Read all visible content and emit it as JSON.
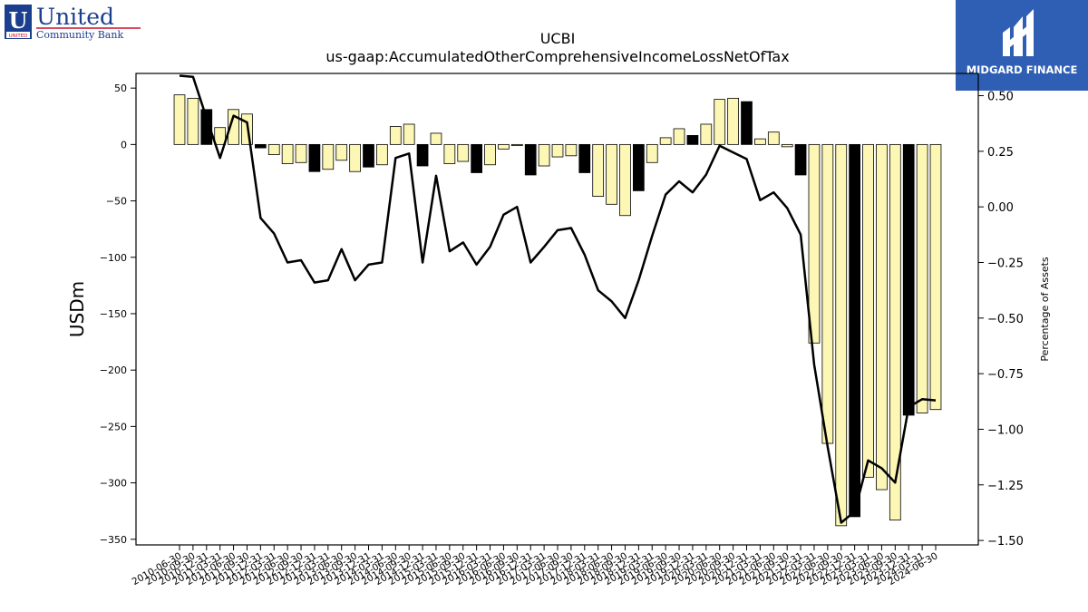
{
  "branding": {
    "left_logo_main": "United",
    "left_logo_sub": "Community Bank",
    "left_logo_badge": "UNITED",
    "right_logo_text": "MIDGARD FINANCE",
    "right_logo_color": "#2f5fb4"
  },
  "chart_data": {
    "type": "bar",
    "title": "UCBI",
    "subtitle": "us-gaap:AccumulatedOtherComprehensiveIncomeLossNetOfTax",
    "ylabel": "USDm",
    "y2label": "Percentage of Assets",
    "ylim": [
      -355,
      63
    ],
    "y2lim": [
      -1.52,
      0.6
    ],
    "yticks": [
      50,
      0,
      -50,
      -100,
      -150,
      -200,
      -250,
      -300,
      -350
    ],
    "y2ticks": [
      0.5,
      0.25,
      0.0,
      -0.25,
      -0.5,
      -0.75,
      -1.0,
      -1.25,
      -1.5
    ],
    "x_tick_labels": [
      "2010-06-30",
      "2010-09-30",
      "2010-12-31",
      "2011-03-31",
      "2011-06-30",
      "2011-09-30",
      "2011-12-31",
      "2012-03-31",
      "2012-06-30",
      "2012-09-30",
      "2012-12-31",
      "2013-03-31",
      "2013-06-30",
      "2013-09-30",
      "2013-12-31",
      "2014-03-31",
      "2014-06-30",
      "2014-09-30",
      "2014-12-31",
      "2015-03-31",
      "2015-06-30",
      "2015-09-30",
      "2015-12-31",
      "2016-03-31",
      "2016-06-30",
      "2016-09-30",
      "2016-12-31",
      "2017-03-31",
      "2017-06-30",
      "2017-09-30",
      "2017-12-31",
      "2018-03-31",
      "2018-06-30",
      "2018-09-30",
      "2018-12-31",
      "2019-03-31",
      "2019-06-30",
      "2019-09-30",
      "2019-12-31",
      "2020-03-31",
      "2020-06-30",
      "2020-09-30",
      "2020-12-31",
      "2021-03-31",
      "2021-06-30",
      "2021-09-30",
      "2021-12-31",
      "2022-03-31",
      "2022-06-30",
      "2022-09-30",
      "2022-12-31",
      "2023-03-31",
      "2023-06-30",
      "2023-09-30",
      "2023-12-31",
      "2024-03-31",
      "2024-06-30"
    ],
    "series": [
      {
        "name": "",
        "kind": "bar",
        "values": [
          44,
          41,
          31,
          15,
          31,
          27,
          -3,
          -9,
          -17,
          -16,
          -24,
          -22,
          -14,
          -24,
          -20,
          -18,
          16,
          18,
          -19,
          10,
          -17,
          -15,
          -25,
          -18,
          -4,
          -1,
          -27,
          -19,
          -11,
          -10,
          -25,
          -46,
          -53,
          -63,
          -41,
          -16,
          6,
          14,
          8,
          18,
          40,
          41,
          38,
          5,
          11,
          -2,
          -27,
          -176,
          -265,
          -338,
          -330,
          -295,
          -306,
          -333,
          -240,
          -238,
          -235
        ],
        "colors": [
          "#fdf7b5",
          "#fdf7b5",
          "#000000",
          "#fdf7b5",
          "#fdf7b5",
          "#fdf7b5",
          "#000000",
          "#fdf7b5",
          "#fdf7b5",
          "#fdf7b5",
          "#000000",
          "#fdf7b5",
          "#fdf7b5",
          "#fdf7b5",
          "#000000",
          "#fdf7b5",
          "#fdf7b5",
          "#fdf7b5",
          "#000000",
          "#fdf7b5",
          "#fdf7b5",
          "#fdf7b5",
          "#000000",
          "#fdf7b5",
          "#fdf7b5",
          "#fdf7b5",
          "#000000",
          "#fdf7b5",
          "#fdf7b5",
          "#fdf7b5",
          "#000000",
          "#fdf7b5",
          "#fdf7b5",
          "#fdf7b5",
          "#000000",
          "#fdf7b5",
          "#fdf7b5",
          "#fdf7b5",
          "#000000",
          "#fdf7b5",
          "#fdf7b5",
          "#fdf7b5",
          "#000000",
          "#fdf7b5",
          "#fdf7b5",
          "#fdf7b5",
          "#000000",
          "#fdf7b5",
          "#fdf7b5",
          "#fdf7b5",
          "#000000",
          "#fdf7b5",
          "#fdf7b5",
          "#fdf7b5",
          "#000000",
          "#fdf7b5",
          "#fdf7b5"
        ]
      },
      {
        "name": "",
        "kind": "line",
        "axis": "right",
        "color": "#000000",
        "values": [
          0.59,
          0.585,
          0.4,
          0.22,
          0.41,
          0.38,
          -0.05,
          -0.12,
          -0.25,
          -0.24,
          -0.34,
          -0.33,
          -0.19,
          -0.33,
          -0.26,
          -0.25,
          0.22,
          0.24,
          -0.25,
          0.14,
          -0.2,
          -0.16,
          -0.26,
          -0.18,
          -0.035,
          0.0,
          -0.25,
          -0.18,
          -0.105,
          -0.095,
          -0.215,
          -0.375,
          -0.425,
          -0.5,
          -0.33,
          -0.13,
          0.055,
          0.115,
          0.065,
          0.145,
          0.275,
          0.245,
          0.215,
          0.03,
          0.065,
          -0.005,
          -0.125,
          -0.71,
          -1.08,
          -1.42,
          -1.37,
          -1.14,
          -1.175,
          -1.24,
          -0.9,
          -0.865,
          -0.87
        ]
      }
    ],
    "bar_edge_color": "#000000"
  }
}
